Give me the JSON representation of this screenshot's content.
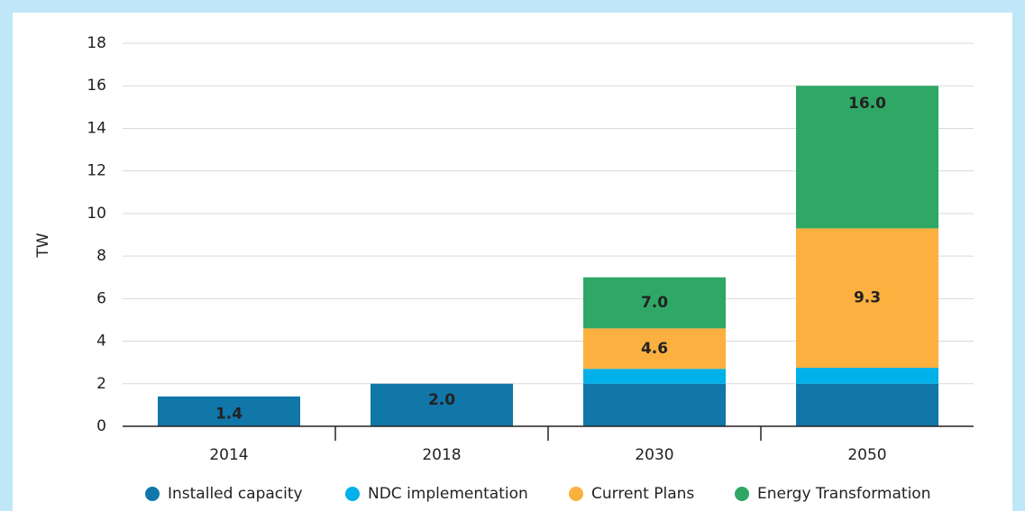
{
  "chart_data": {
    "type": "stacked_bar",
    "ylabel": "TW",
    "categories": [
      "2014",
      "2018",
      "2030",
      "2050"
    ],
    "ylim": [
      0,
      18
    ],
    "yticks": [
      0,
      2,
      4,
      6,
      8,
      10,
      12,
      14,
      16,
      18
    ],
    "grid": true,
    "legend": "bottom",
    "series": [
      {
        "name": "Installed capacity",
        "color": "#1176a8",
        "values": [
          1.4,
          2.0,
          2.0,
          2.0
        ],
        "value_labels": [
          "1.4",
          "2.0",
          null,
          null
        ]
      },
      {
        "name": "NDC implementation",
        "color": "#00b0e8",
        "values": [
          null,
          null,
          0.7,
          0.75
        ]
      },
      {
        "name": "Current Plans",
        "color": "#fbb040",
        "values": [
          null,
          null,
          1.9,
          6.55
        ],
        "totals": [
          null,
          null,
          4.6,
          9.3
        ],
        "total_labels": [
          null,
          null,
          "4.6",
          "9.3"
        ]
      },
      {
        "name": "Energy Transformation",
        "color": "#2fa866",
        "values": [
          null,
          null,
          2.4,
          6.7
        ],
        "totals": [
          null,
          null,
          7.0,
          16.0
        ],
        "total_labels": [
          null,
          null,
          "7.0",
          "16.0"
        ]
      }
    ]
  }
}
